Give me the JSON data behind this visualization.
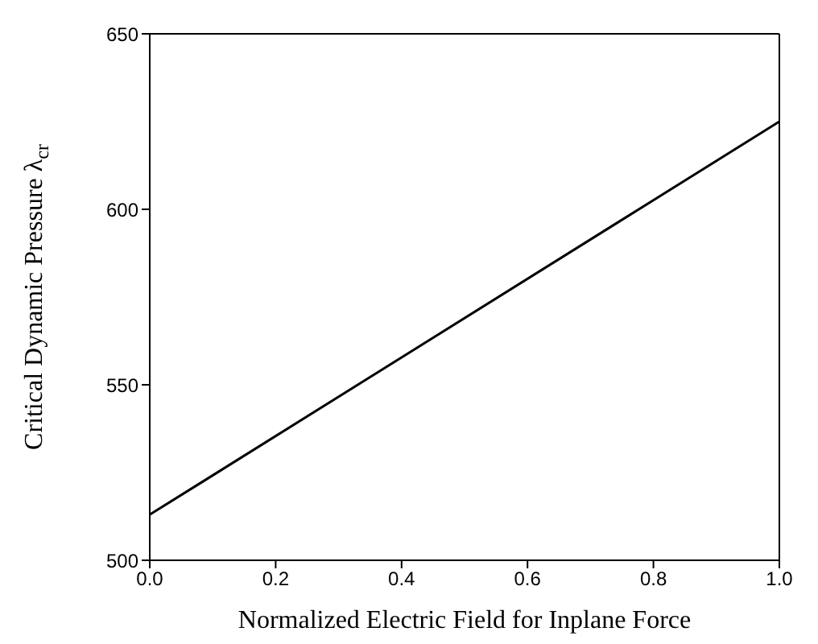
{
  "chart_data": {
    "type": "line",
    "xlabel": "Normalized Electric Field for Inplane Force",
    "ylabel": "Critical Dynamic Pressure λ$_{cr}$",
    "x": [
      0,
      1
    ],
    "series": [
      {
        "color": "#000000",
        "values": [
          513,
          625
        ]
      }
    ],
    "xlim": [
      0,
      1
    ],
    "xticks": [
      {
        "value": 0,
        "label": "0.0"
      },
      {
        "value": 0.2,
        "label": "0.2"
      },
      {
        "value": 0.4,
        "label": "0.4"
      },
      {
        "value": 0.6,
        "label": "0.6"
      },
      {
        "value": 0.8,
        "label": "0.8"
      },
      {
        "value": 1,
        "label": "1.0"
      }
    ],
    "ylim": [
      500,
      650
    ],
    "yticks": [
      500,
      550,
      600,
      650
    ],
    "grid": false,
    "legend": false,
    "marker": "none",
    "line_style": "solid"
  }
}
